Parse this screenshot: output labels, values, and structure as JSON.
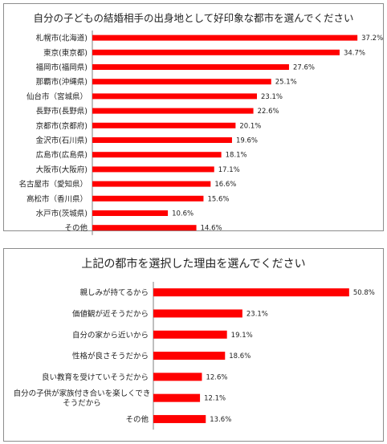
{
  "chart_data": [
    {
      "type": "bar",
      "orientation": "horizontal",
      "title": "自分の子どもの結婚相手の出身地として好印象な都市を選んでください",
      "categories": [
        "札幌市(北海道)",
        "東京(東京都)",
        "福岡市(福岡県)",
        "那覇市(沖縄県)",
        "仙台市（宮城県）",
        "長野市(長野県)",
        "京都市(京都府)",
        "金沢市(石川県)",
        "広島市(広島県)",
        "大阪市(大阪府)",
        "名古屋市（愛知県）",
        "高松市（香川県）",
        "水戸市(茨城県)",
        "その他"
      ],
      "values": [
        37.2,
        34.7,
        27.6,
        25.1,
        23.1,
        22.6,
        20.1,
        19.6,
        18.1,
        17.1,
        16.6,
        15.6,
        10.6,
        14.6
      ],
      "value_labels": [
        "37.2%",
        "34.7%",
        "27.6%",
        "25.1%",
        "23.1%",
        "22.6%",
        "20.1%",
        "19.6%",
        "18.1%",
        "17.1%",
        "16.6%",
        "15.6%",
        "10.6%",
        "14.6%"
      ],
      "unit": "%",
      "xlim": [
        0,
        40
      ],
      "grid": false,
      "bar_color": "#ff0000"
    },
    {
      "type": "bar",
      "orientation": "horizontal",
      "title": "上記の都市を選択した理由を選んでください",
      "categories": [
        "親しみが持てるから",
        "価値観が近そうだから",
        "自分の家から近いから",
        "性格が良さそうだから",
        "良い教育を受けていそうだから",
        "自分の子供が家族付き合いを楽しくできそうだから",
        "その他"
      ],
      "category_lines": [
        [
          "親しみが持てるから"
        ],
        [
          "価値観が近そうだから"
        ],
        [
          "自分の家から近いから"
        ],
        [
          "性格が良さそうだから"
        ],
        [
          "良い教育を受けていそうだから"
        ],
        [
          "自分の子供が家族付き合いを楽しくでき",
          "そうだから"
        ],
        [
          "その他"
        ]
      ],
      "values": [
        50.8,
        23.1,
        19.1,
        18.6,
        12.6,
        12.1,
        13.6
      ],
      "value_labels": [
        "50.8%",
        "23.1%",
        "19.1%",
        "18.6%",
        "12.6%",
        "12.1%",
        "13.6%"
      ],
      "unit": "%",
      "xlim": [
        0,
        55
      ],
      "grid": false,
      "bar_color": "#ff0000"
    }
  ]
}
